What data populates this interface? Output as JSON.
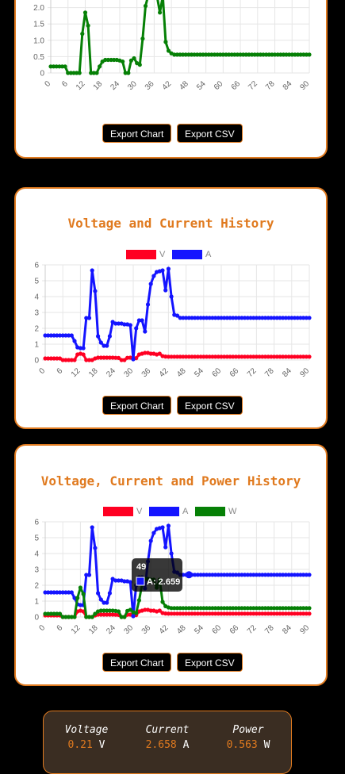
{
  "buttons": {
    "export_chart": "Export Chart",
    "export_csv": "Export CSV"
  },
  "status": {
    "voltage_label": "Voltage",
    "voltage_value": "0.21",
    "voltage_unit": "V",
    "current_label": "Current",
    "current_value": "2.658",
    "current_unit": "A",
    "power_label": "Power",
    "power_value": "0.563",
    "power_unit": "W"
  },
  "colors": {
    "accent": "#e07a1f",
    "voltage": "#ff0022",
    "current": "#1414ff",
    "power": "#068006"
  },
  "tooltip": {
    "title": "49",
    "text": "A: 2.659"
  },
  "chart_data": [
    {
      "type": "line",
      "title": "",
      "x_ticks": [
        "0",
        "6",
        "12",
        "18",
        "24",
        "30",
        "36",
        "42",
        "48",
        "54",
        "60",
        "66",
        "72",
        "78",
        "84",
        "90"
      ],
      "y_ticks": [
        "0",
        "0.5",
        "1.0",
        "1.5",
        "2.0"
      ],
      "ylim": [
        0,
        2.5
      ],
      "series": [
        {
          "values": [
            0.2,
            0.2,
            0.2,
            0.2,
            0.2,
            0.2,
            0,
            0,
            0,
            0,
            0,
            1.2,
            1.85,
            1.45,
            0,
            0,
            0,
            0.2,
            0.35,
            0.4,
            0.4,
            0.4,
            0.4,
            0.4,
            0.38,
            0.35,
            0,
            0,
            0.38,
            0.45,
            0.3,
            0.25,
            1.05,
            2.05,
            2.4,
            2.4,
            2.35,
            2.35,
            1.85,
            2.35,
            0.95,
            0.68,
            0.6,
            0.56,
            0.56,
            0.56,
            0.56,
            0.56,
            0.56,
            0.56,
            0.56,
            0.56,
            0.56,
            0.56,
            0.56,
            0.56,
            0.56,
            0.56,
            0.56,
            0.56,
            0.56,
            0.56,
            0.56,
            0.56,
            0.56,
            0.56,
            0.56,
            0.56,
            0.56,
            0.56,
            0.56,
            0.56,
            0.56,
            0.56,
            0.56,
            0.56,
            0.56,
            0.56,
            0.56,
            0.56,
            0.56,
            0.56,
            0.56,
            0.56,
            0.56,
            0.56,
            0.56,
            0.56,
            0.56,
            0.56,
            0.56
          ]
        }
      ]
    },
    {
      "type": "line",
      "title": "Voltage and Current History",
      "x_ticks": [
        "0",
        "6",
        "12",
        "18",
        "24",
        "30",
        "36",
        "42",
        "48",
        "54",
        "60",
        "66",
        "72",
        "78",
        "84",
        "90"
      ],
      "y_ticks": [
        "0",
        "1",
        "2",
        "3",
        "4",
        "5",
        "6"
      ],
      "ylim": [
        0,
        6
      ],
      "series": [
        {
          "name": "V",
          "values": [
            0.1,
            0.1,
            0.1,
            0.1,
            0.1,
            0.1,
            0,
            0,
            0,
            0,
            0,
            0.35,
            0.4,
            0.35,
            0,
            0,
            0,
            0.1,
            0.15,
            0.15,
            0.15,
            0.15,
            0.15,
            0.15,
            0.14,
            0.13,
            0,
            0,
            0.14,
            0.15,
            0.12,
            0.12,
            0.35,
            0.4,
            0.45,
            0.45,
            0.4,
            0.4,
            0.35,
            0.4,
            0.25,
            0.22,
            0.21,
            0.21,
            0.21,
            0.21,
            0.21,
            0.21,
            0.21,
            0.21,
            0.21,
            0.21,
            0.21,
            0.21,
            0.21,
            0.21,
            0.21,
            0.21,
            0.21,
            0.21,
            0.21,
            0.21,
            0.21,
            0.21,
            0.21,
            0.21,
            0.21,
            0.21,
            0.21,
            0.21,
            0.21,
            0.21,
            0.21,
            0.21,
            0.21,
            0.21,
            0.21,
            0.21,
            0.21,
            0.21,
            0.21,
            0.21,
            0.21,
            0.21,
            0.21,
            0.21,
            0.21,
            0.21,
            0.21,
            0.21,
            0.21
          ]
        },
        {
          "name": "A",
          "values": [
            1.55,
            1.55,
            1.55,
            1.55,
            1.55,
            1.55,
            1.55,
            1.55,
            1.55,
            1.55,
            1.2,
            0.8,
            0.75,
            0.75,
            2.65,
            2.65,
            5.65,
            4.35,
            1.5,
            1.1,
            0.9,
            0.9,
            1.5,
            2.4,
            2.3,
            2.3,
            2.3,
            2.25,
            2.25,
            2.2,
            0.05,
            2.0,
            2.5,
            2.5,
            1.8,
            3.5,
            4.8,
            5.3,
            5.55,
            5.6,
            5.65,
            4.4,
            5.75,
            4.0,
            2.85,
            2.8,
            2.66,
            2.66,
            2.66,
            2.66,
            2.66,
            2.66,
            2.66,
            2.66,
            2.66,
            2.66,
            2.66,
            2.66,
            2.66,
            2.66,
            2.66,
            2.66,
            2.66,
            2.66,
            2.66,
            2.66,
            2.66,
            2.66,
            2.66,
            2.66,
            2.66,
            2.66,
            2.66,
            2.66,
            2.66,
            2.66,
            2.66,
            2.66,
            2.66,
            2.66,
            2.66,
            2.66,
            2.66,
            2.66,
            2.66,
            2.66,
            2.66,
            2.66,
            2.66,
            2.66,
            2.66
          ]
        }
      ]
    },
    {
      "type": "line",
      "title": "Voltage, Current and Power History",
      "x_ticks": [
        "0",
        "6",
        "12",
        "18",
        "24",
        "30",
        "36",
        "42",
        "48",
        "54",
        "60",
        "66",
        "72",
        "78",
        "84",
        "90"
      ],
      "y_ticks": [
        "0",
        "1",
        "2",
        "3",
        "4",
        "5",
        "6"
      ],
      "ylim": [
        0,
        6
      ],
      "series": [
        {
          "name": "V",
          "values": [
            0.1,
            0.1,
            0.1,
            0.1,
            0.1,
            0.1,
            0,
            0,
            0,
            0,
            0,
            0.35,
            0.4,
            0.35,
            0,
            0,
            0,
            0.1,
            0.15,
            0.15,
            0.15,
            0.15,
            0.15,
            0.15,
            0.14,
            0.13,
            0,
            0,
            0.14,
            0.15,
            0.12,
            0.12,
            0.35,
            0.4,
            0.45,
            0.45,
            0.4,
            0.4,
            0.35,
            0.4,
            0.25,
            0.22,
            0.21,
            0.21,
            0.21,
            0.21,
            0.21,
            0.21,
            0.21,
            0.21,
            0.21,
            0.21,
            0.21,
            0.21,
            0.21,
            0.21,
            0.21,
            0.21,
            0.21,
            0.21,
            0.21,
            0.21,
            0.21,
            0.21,
            0.21,
            0.21,
            0.21,
            0.21,
            0.21,
            0.21,
            0.21,
            0.21,
            0.21,
            0.21,
            0.21,
            0.21,
            0.21,
            0.21,
            0.21,
            0.21,
            0.21,
            0.21,
            0.21,
            0.21,
            0.21,
            0.21,
            0.21,
            0.21,
            0.21,
            0.21,
            0.21
          ]
        },
        {
          "name": "A",
          "values": [
            1.55,
            1.55,
            1.55,
            1.55,
            1.55,
            1.55,
            1.55,
            1.55,
            1.55,
            1.55,
            1.2,
            0.8,
            0.75,
            0.75,
            2.65,
            2.65,
            5.65,
            4.35,
            1.5,
            1.1,
            0.9,
            0.9,
            1.5,
            2.4,
            2.3,
            2.3,
            2.3,
            2.25,
            2.25,
            2.2,
            0.05,
            2.0,
            2.5,
            2.5,
            1.8,
            3.5,
            4.8,
            5.3,
            5.55,
            5.6,
            5.65,
            4.4,
            5.75,
            4.0,
            2.85,
            2.8,
            2.66,
            2.66,
            2.66,
            2.66,
            2.66,
            2.66,
            2.66,
            2.66,
            2.66,
            2.66,
            2.66,
            2.66,
            2.66,
            2.66,
            2.66,
            2.66,
            2.66,
            2.66,
            2.66,
            2.66,
            2.66,
            2.66,
            2.66,
            2.66,
            2.66,
            2.66,
            2.66,
            2.66,
            2.66,
            2.66,
            2.66,
            2.66,
            2.66,
            2.66,
            2.66,
            2.66,
            2.66,
            2.66,
            2.66,
            2.66,
            2.66,
            2.66,
            2.66,
            2.66,
            2.66
          ]
        },
        {
          "name": "W",
          "values": [
            0.2,
            0.2,
            0.2,
            0.2,
            0.2,
            0.2,
            0,
            0,
            0,
            0,
            0,
            1.2,
            1.85,
            1.45,
            0,
            0,
            0,
            0.2,
            0.35,
            0.4,
            0.4,
            0.4,
            0.4,
            0.4,
            0.38,
            0.35,
            0,
            0,
            0.38,
            0.45,
            0.3,
            0.25,
            1.05,
            2.05,
            2.4,
            2.4,
            2.35,
            2.35,
            1.85,
            2.35,
            0.95,
            0.68,
            0.6,
            0.56,
            0.56,
            0.56,
            0.56,
            0.56,
            0.56,
            0.56,
            0.56,
            0.56,
            0.56,
            0.56,
            0.56,
            0.56,
            0.56,
            0.56,
            0.56,
            0.56,
            0.56,
            0.56,
            0.56,
            0.56,
            0.56,
            0.56,
            0.56,
            0.56,
            0.56,
            0.56,
            0.56,
            0.56,
            0.56,
            0.56,
            0.56,
            0.56,
            0.56,
            0.56,
            0.56,
            0.56,
            0.56,
            0.56,
            0.56,
            0.56,
            0.56,
            0.56,
            0.56,
            0.56,
            0.56,
            0.56,
            0.56
          ]
        }
      ]
    }
  ]
}
